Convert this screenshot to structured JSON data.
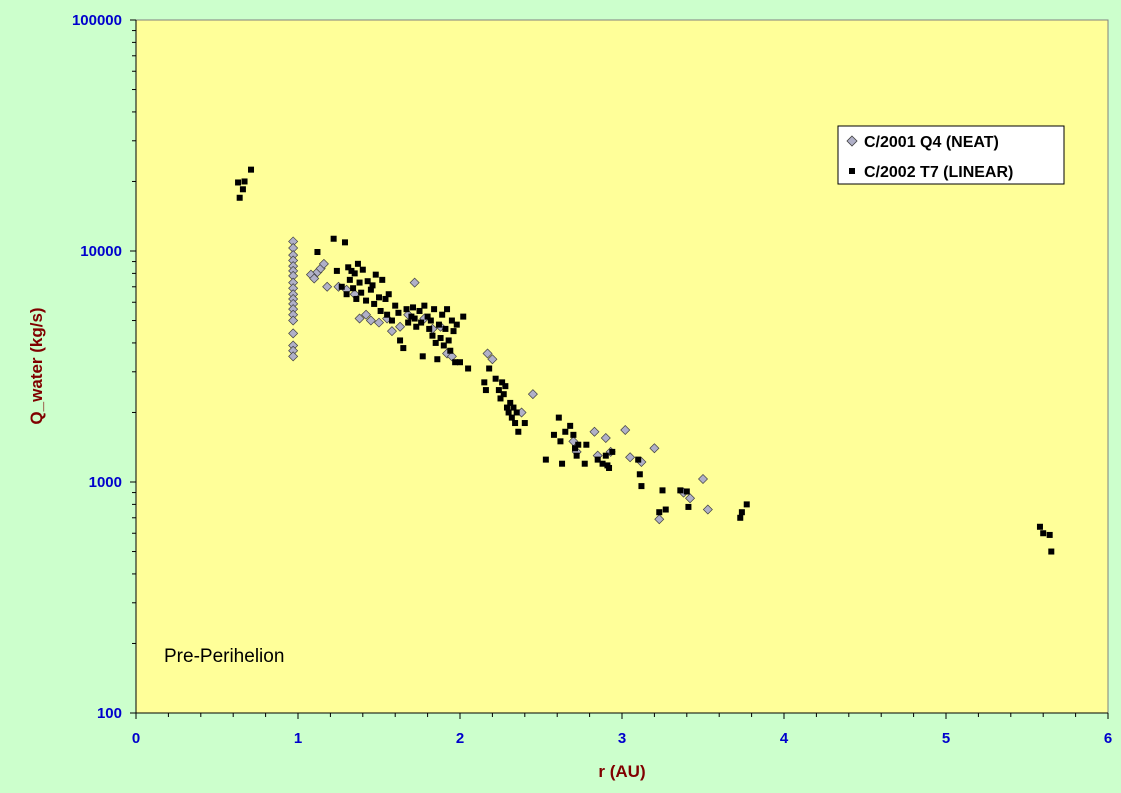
{
  "chart_data": {
    "type": "scatter",
    "title": "",
    "xlabel": "r (AU)",
    "ylabel": "Q_water (kg/s)",
    "xlim": [
      0,
      6
    ],
    "ylim": [
      100,
      100000
    ],
    "y_scale": "log",
    "x_ticks": [
      "0",
      "1",
      "2",
      "3",
      "4",
      "5",
      "6"
    ],
    "y_ticks": [
      "100",
      "1000",
      "10000",
      "100000"
    ],
    "grid": false,
    "plot_background": "#ffff99",
    "figure_background": "#ccffcc",
    "legend_position": "top-right",
    "annotation": "Pre-Perihelion",
    "series": [
      {
        "name": "C/2001 Q4 (NEAT)",
        "marker": "diamond",
        "color": "#b0b0c8",
        "points": [
          [
            0.97,
            11000
          ],
          [
            0.97,
            10300
          ],
          [
            0.97,
            9600
          ],
          [
            0.97,
            9100
          ],
          [
            0.97,
            8600
          ],
          [
            0.97,
            8200
          ],
          [
            0.97,
            7800
          ],
          [
            0.97,
            7300
          ],
          [
            0.97,
            6900
          ],
          [
            0.97,
            6500
          ],
          [
            0.97,
            6200
          ],
          [
            0.97,
            5900
          ],
          [
            0.97,
            5600
          ],
          [
            0.97,
            5300
          ],
          [
            0.97,
            5000
          ],
          [
            0.97,
            4400
          ],
          [
            0.97,
            3900
          ],
          [
            0.97,
            3700
          ],
          [
            0.97,
            3500
          ],
          [
            1.08,
            7900
          ],
          [
            1.1,
            7600
          ],
          [
            1.12,
            8100
          ],
          [
            1.14,
            8400
          ],
          [
            1.16,
            8800
          ],
          [
            1.18,
            7000
          ],
          [
            1.25,
            7000
          ],
          [
            1.3,
            6800
          ],
          [
            1.35,
            6500
          ],
          [
            1.38,
            5100
          ],
          [
            1.42,
            5300
          ],
          [
            1.45,
            5000
          ],
          [
            1.5,
            4900
          ],
          [
            1.55,
            5100
          ],
          [
            1.58,
            4500
          ],
          [
            1.63,
            4700
          ],
          [
            1.68,
            5300
          ],
          [
            1.72,
            7300
          ],
          [
            1.78,
            5100
          ],
          [
            1.83,
            4600
          ],
          [
            1.88,
            4700
          ],
          [
            1.92,
            3600
          ],
          [
            1.95,
            3500
          ],
          [
            2.17,
            3600
          ],
          [
            2.2,
            3400
          ],
          [
            2.38,
            2000
          ],
          [
            2.45,
            2400
          ],
          [
            2.7,
            1500
          ],
          [
            2.72,
            1350
          ],
          [
            2.83,
            1650
          ],
          [
            2.85,
            1300
          ],
          [
            2.9,
            1550
          ],
          [
            2.93,
            1350
          ],
          [
            3.02,
            1680
          ],
          [
            3.05,
            1280
          ],
          [
            3.12,
            1220
          ],
          [
            3.2,
            1400
          ],
          [
            3.23,
            690
          ],
          [
            3.38,
            900
          ],
          [
            3.42,
            850
          ],
          [
            3.5,
            1030
          ],
          [
            3.53,
            760
          ]
        ]
      },
      {
        "name": "C/2002 T7 (LINEAR)",
        "marker": "square",
        "color": "#000000",
        "points": [
          [
            0.63,
            19800
          ],
          [
            0.64,
            17000
          ],
          [
            0.66,
            18500
          ],
          [
            0.67,
            20000
          ],
          [
            0.71,
            22500
          ],
          [
            1.12,
            9900
          ],
          [
            1.22,
            11300
          ],
          [
            1.24,
            8200
          ],
          [
            1.27,
            7000
          ],
          [
            1.29,
            10900
          ],
          [
            1.3,
            6500
          ],
          [
            1.31,
            8500
          ],
          [
            1.32,
            7500
          ],
          [
            1.33,
            8200
          ],
          [
            1.34,
            6900
          ],
          [
            1.35,
            8000
          ],
          [
            1.36,
            6200
          ],
          [
            1.37,
            8800
          ],
          [
            1.38,
            7300
          ],
          [
            1.39,
            6600
          ],
          [
            1.4,
            8300
          ],
          [
            1.42,
            6100
          ],
          [
            1.43,
            7400
          ],
          [
            1.45,
            6800
          ],
          [
            1.46,
            7100
          ],
          [
            1.47,
            5900
          ],
          [
            1.48,
            7900
          ],
          [
            1.5,
            6300
          ],
          [
            1.51,
            5500
          ],
          [
            1.52,
            7500
          ],
          [
            1.54,
            6200
          ],
          [
            1.55,
            5300
          ],
          [
            1.56,
            6500
          ],
          [
            1.58,
            5000
          ],
          [
            1.6,
            5800
          ],
          [
            1.62,
            5400
          ],
          [
            1.63,
            4100
          ],
          [
            1.65,
            3800
          ],
          [
            1.67,
            5600
          ],
          [
            1.68,
            4900
          ],
          [
            1.7,
            5200
          ],
          [
            1.71,
            5700
          ],
          [
            1.72,
            5100
          ],
          [
            1.73,
            4700
          ],
          [
            1.75,
            5500
          ],
          [
            1.76,
            4900
          ],
          [
            1.77,
            3500
          ],
          [
            1.78,
            5800
          ],
          [
            1.8,
            5200
          ],
          [
            1.81,
            4600
          ],
          [
            1.82,
            5000
          ],
          [
            1.83,
            4300
          ],
          [
            1.84,
            5600
          ],
          [
            1.85,
            4000
          ],
          [
            1.86,
            3400
          ],
          [
            1.87,
            4800
          ],
          [
            1.88,
            4200
          ],
          [
            1.89,
            5300
          ],
          [
            1.9,
            3900
          ],
          [
            1.91,
            4600
          ],
          [
            1.92,
            5600
          ],
          [
            1.93,
            4100
          ],
          [
            1.94,
            3700
          ],
          [
            1.95,
            5000
          ],
          [
            1.96,
            4500
          ],
          [
            1.97,
            3300
          ],
          [
            1.98,
            4800
          ],
          [
            2.0,
            3300
          ],
          [
            2.02,
            5200
          ],
          [
            2.05,
            3100
          ],
          [
            2.15,
            2700
          ],
          [
            2.16,
            2500
          ],
          [
            2.18,
            3100
          ],
          [
            2.22,
            2800
          ],
          [
            2.24,
            2500
          ],
          [
            2.25,
            2300
          ],
          [
            2.26,
            2700
          ],
          [
            2.27,
            2400
          ],
          [
            2.28,
            2600
          ],
          [
            2.29,
            2100
          ],
          [
            2.3,
            2000
          ],
          [
            2.31,
            2200
          ],
          [
            2.32,
            1900
          ],
          [
            2.33,
            2100
          ],
          [
            2.34,
            1800
          ],
          [
            2.35,
            2000
          ],
          [
            2.36,
            1650
          ],
          [
            2.4,
            1800
          ],
          [
            2.53,
            1250
          ],
          [
            2.58,
            1600
          ],
          [
            2.61,
            1900
          ],
          [
            2.62,
            1500
          ],
          [
            2.63,
            1200
          ],
          [
            2.65,
            1650
          ],
          [
            2.68,
            1750
          ],
          [
            2.7,
            1600
          ],
          [
            2.71,
            1400
          ],
          [
            2.72,
            1300
          ],
          [
            2.73,
            1450
          ],
          [
            2.77,
            1200
          ],
          [
            2.78,
            1450
          ],
          [
            2.85,
            1250
          ],
          [
            2.88,
            1200
          ],
          [
            2.9,
            1300
          ],
          [
            2.91,
            1180
          ],
          [
            2.92,
            1150
          ],
          [
            2.94,
            1350
          ],
          [
            3.1,
            1250
          ],
          [
            3.11,
            1080
          ],
          [
            3.12,
            960
          ],
          [
            3.23,
            740
          ],
          [
            3.25,
            920
          ],
          [
            3.27,
            760
          ],
          [
            3.36,
            920
          ],
          [
            3.4,
            910
          ],
          [
            3.41,
            780
          ],
          [
            3.73,
            700
          ],
          [
            3.74,
            740
          ],
          [
            3.77,
            800
          ],
          [
            5.58,
            640
          ],
          [
            5.6,
            600
          ],
          [
            5.64,
            590
          ],
          [
            5.65,
            500
          ]
        ]
      }
    ]
  }
}
